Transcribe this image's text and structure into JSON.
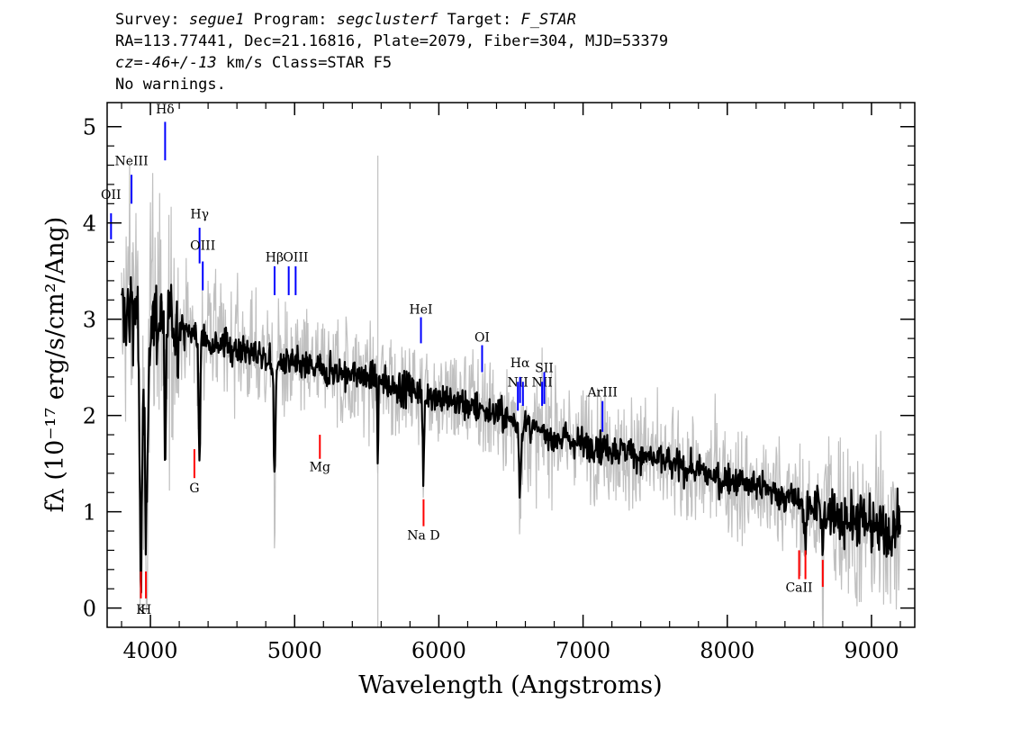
{
  "header": {
    "survey_label": "Survey:",
    "survey": "segue1",
    "program_label": "Program:",
    "program": "segclusterf",
    "target_label": "Target:",
    "target": "F_STAR",
    "line2": "RA=113.77441, Dec=21.16816, Plate=2079, Fiber=304, MJD=53379",
    "cz_label": "cz=",
    "cz_value": "-46+/-13",
    "line3_rest": " km/s Class=STAR F5",
    "line4": "No warnings."
  },
  "chart_data": {
    "type": "line",
    "xlabel": "Wavelength (Angstroms)",
    "ylabel": "fλ (10⁻¹⁷ erg/s/cm²/Ang)",
    "xlim": [
      3700,
      9300
    ],
    "ylim": [
      -0.2,
      5.25
    ],
    "x_ticks": [
      4000,
      5000,
      6000,
      7000,
      8000,
      9000
    ],
    "y_ticks": [
      0,
      1,
      2,
      3,
      4,
      5
    ],
    "grid": false,
    "colors": {
      "flux": "#000000",
      "error": "#c0c0c0",
      "emission": "#0000ff",
      "absorption": "#ff0000"
    },
    "flux_anchors": [
      [
        3800,
        3.0
      ],
      [
        3850,
        3.1
      ],
      [
        3900,
        3.2
      ],
      [
        3970,
        3.05
      ],
      [
        4050,
        3.0
      ],
      [
        4150,
        2.95
      ],
      [
        4300,
        2.85
      ],
      [
        4500,
        2.75
      ],
      [
        4700,
        2.65
      ],
      [
        4900,
        2.55
      ],
      [
        5100,
        2.5
      ],
      [
        5300,
        2.45
      ],
      [
        5500,
        2.4
      ],
      [
        5700,
        2.3
      ],
      [
        5900,
        2.25
      ],
      [
        6100,
        2.15
      ],
      [
        6300,
        2.07
      ],
      [
        6500,
        1.95
      ],
      [
        6700,
        1.82
      ],
      [
        6900,
        1.75
      ],
      [
        7100,
        1.68
      ],
      [
        7300,
        1.62
      ],
      [
        7500,
        1.55
      ],
      [
        7700,
        1.45
      ],
      [
        7900,
        1.37
      ],
      [
        8100,
        1.3
      ],
      [
        8300,
        1.22
      ],
      [
        8500,
        1.1
      ],
      [
        8700,
        1.0
      ],
      [
        8900,
        0.9
      ],
      [
        9100,
        0.8
      ],
      [
        9200,
        0.85
      ]
    ],
    "absorption_features": [
      {
        "center": 3934,
        "depth": 2.7,
        "width": 10
      },
      {
        "center": 3970,
        "depth": 2.4,
        "width": 10
      },
      {
        "center": 4102,
        "depth": 1.6,
        "width": 6
      },
      {
        "center": 4340,
        "depth": 1.3,
        "width": 6
      },
      {
        "center": 4861,
        "depth": 1.35,
        "width": 6
      },
      {
        "center": 5577,
        "depth": 1.0,
        "width": 3
      },
      {
        "center": 5893,
        "depth": 1.0,
        "width": 5
      },
      {
        "center": 6563,
        "depth": 0.7,
        "width": 6
      },
      {
        "center": 8542,
        "depth": 0.4,
        "width": 8
      },
      {
        "center": 8662,
        "depth": 0.4,
        "width": 8
      }
    ],
    "emission_lines": [
      {
        "label": "OII",
        "wave": 3727,
        "y_bottom": 3.83,
        "y_top": 4.1,
        "label_y": 4.25
      },
      {
        "label": "NeIII",
        "wave": 3869,
        "y_bottom": 4.2,
        "y_top": 4.5,
        "label_y": 4.6
      },
      {
        "label": "Hδ",
        "wave": 4102,
        "y_bottom": 4.65,
        "y_top": 5.05,
        "label_y": 5.14
      },
      {
        "label": "Hγ",
        "wave": 4341,
        "y_bottom": 3.58,
        "y_top": 3.95,
        "label_y": 4.05
      },
      {
        "label": "OIII",
        "wave": 4363,
        "y_bottom": 3.3,
        "y_top": 3.6,
        "label_y": 3.72
      },
      {
        "label": "Hβ",
        "wave": 4861,
        "y_bottom": 3.25,
        "y_top": 3.55,
        "label_y": 3.6
      },
      {
        "label": "OIII",
        "wave": 4959,
        "y_bottom": 3.25,
        "y_top": 3.55,
        "label_y": null
      },
      {
        "label": "OIII",
        "wave": 5007,
        "y_bottom": 3.25,
        "y_top": 3.55,
        "label_y": 3.6
      },
      {
        "label": "HeI",
        "wave": 5876,
        "y_bottom": 2.75,
        "y_top": 3.02,
        "label_y": 3.06
      },
      {
        "label": "OI",
        "wave": 6300,
        "y_bottom": 2.45,
        "y_top": 2.73,
        "label_y": 2.77
      },
      {
        "label": "NII",
        "wave": 6548,
        "y_bottom": 2.05,
        "y_top": 2.35,
        "label_y": 2.3
      },
      {
        "label": "Hα",
        "wave": 6563,
        "y_bottom": 2.13,
        "y_top": 2.4,
        "label_y": 2.5
      },
      {
        "label": "NII",
        "wave": 6583,
        "y_bottom": 2.1,
        "y_top": 2.35,
        "label_y": null
      },
      {
        "label": "NII",
        "wave": 6716,
        "y_bottom": 2.1,
        "y_top": 2.35,
        "label_y": 2.3
      },
      {
        "label": "SII",
        "wave": 6731,
        "y_bottom": 2.12,
        "y_top": 2.45,
        "label_y": 2.45
      },
      {
        "label": "ArIII",
        "wave": 7135,
        "y_bottom": 1.83,
        "y_top": 2.15,
        "label_y": 2.2
      }
    ],
    "absorption_lines": [
      {
        "label": "K",
        "wave": 3934,
        "y_bottom": 0.1,
        "y_top": 0.38,
        "label_y": -0.06
      },
      {
        "label": "H",
        "wave": 3969,
        "y_bottom": 0.1,
        "y_top": 0.38,
        "label_y": -0.06
      },
      {
        "label": "G",
        "wave": 4305,
        "y_bottom": 1.35,
        "y_top": 1.65,
        "label_y": 1.2
      },
      {
        "label": "Mg",
        "wave": 5175,
        "y_bottom": 1.55,
        "y_top": 1.8,
        "label_y": 1.42
      },
      {
        "label": "Na D",
        "wave": 5894,
        "y_bottom": 0.85,
        "y_top": 1.13,
        "label_y": 0.71
      },
      {
        "label": "CaII",
        "wave": 8498,
        "y_bottom": 0.3,
        "y_top": 0.6,
        "label_y": 0.17
      },
      {
        "label": "CaII",
        "wave": 8542,
        "y_bottom": 0.3,
        "y_top": 0.6,
        "label_y": null
      },
      {
        "label": "CaII",
        "wave": 8662,
        "y_bottom": 0.22,
        "y_top": 0.5,
        "label_y": null
      }
    ]
  }
}
